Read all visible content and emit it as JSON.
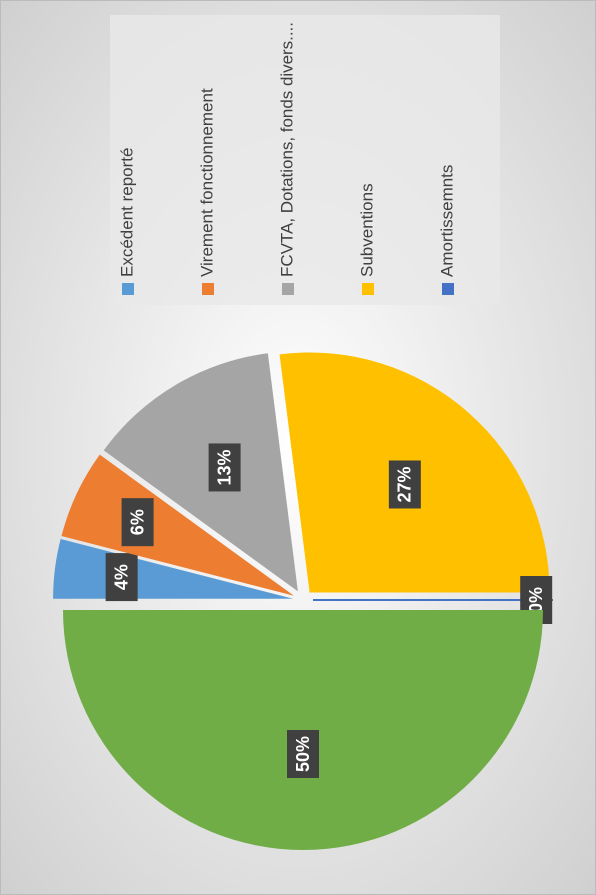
{
  "chart_data": {
    "type": "pie",
    "categories": [
      "Excédent reporté",
      "Virement fonctionnement",
      "FCVTA, Dotations, fonds divers....",
      "Subventions",
      "Amortissemnts",
      null
    ],
    "values": [
      4,
      6,
      13,
      27,
      0,
      50
    ],
    "value_labels": [
      "4%",
      "6%",
      "13%",
      "27%",
      "0%",
      "50%"
    ],
    "colors": [
      "#5b9bd5",
      "#ed7d31",
      "#a5a5a5",
      "#ffc000",
      "#4472c4",
      "#70ad47"
    ],
    "legend": "right"
  }
}
